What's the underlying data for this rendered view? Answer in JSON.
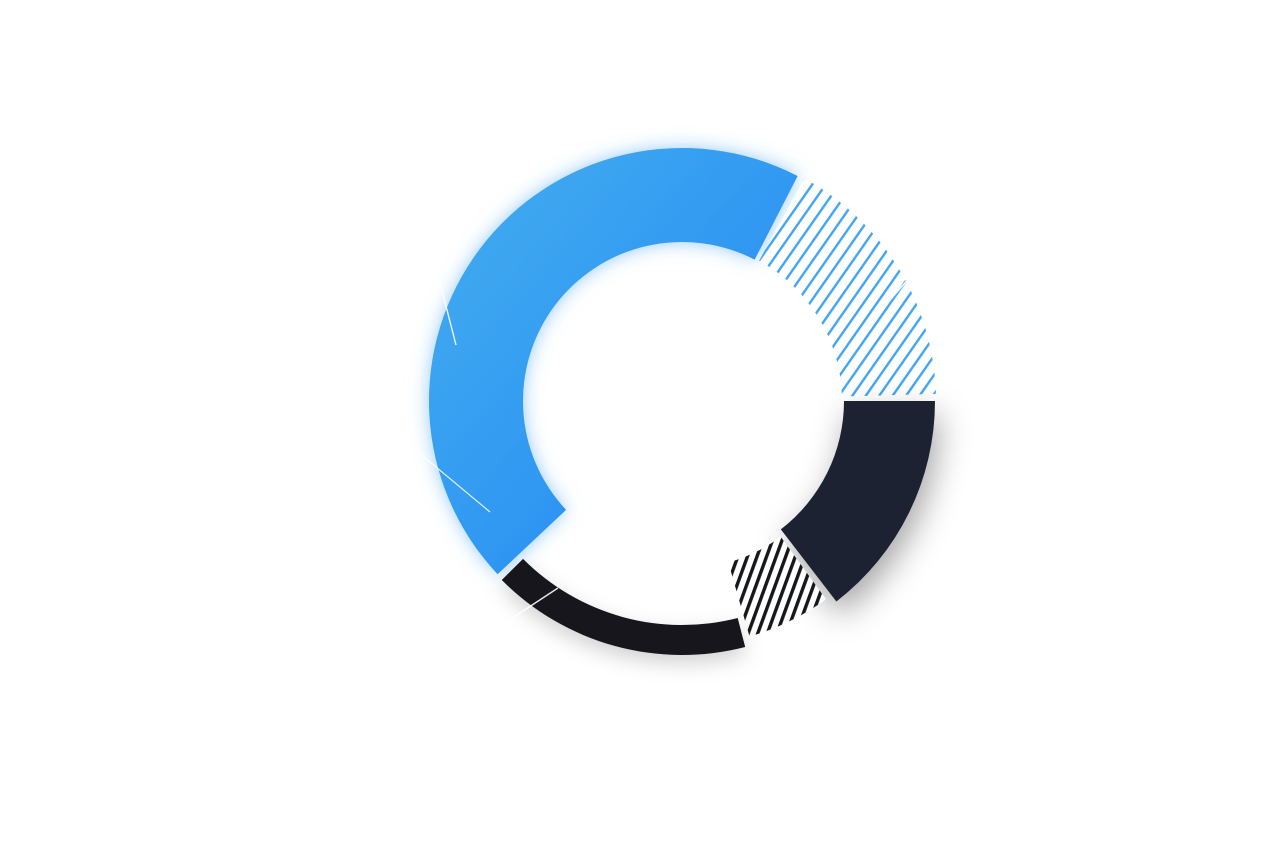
{
  "chart_data": {
    "type": "pie",
    "variant": "donut",
    "title": "",
    "legend": "none",
    "labels_shown": false,
    "slices": [
      {
        "value": 45.0,
        "color": "#2E8FF0",
        "color_light": "#45AEEF",
        "fill": "gradient"
      },
      {
        "value": 17.0,
        "color": "#42A5F5",
        "fill": "hatched"
      },
      {
        "value": 15.0,
        "color": "#1B2230",
        "fill": "solid"
      },
      {
        "value": 6.0,
        "color": "#16171A",
        "fill": "hatched-dark"
      },
      {
        "value": 17.0,
        "color": "#17181B",
        "fill": "solid"
      }
    ]
  }
}
